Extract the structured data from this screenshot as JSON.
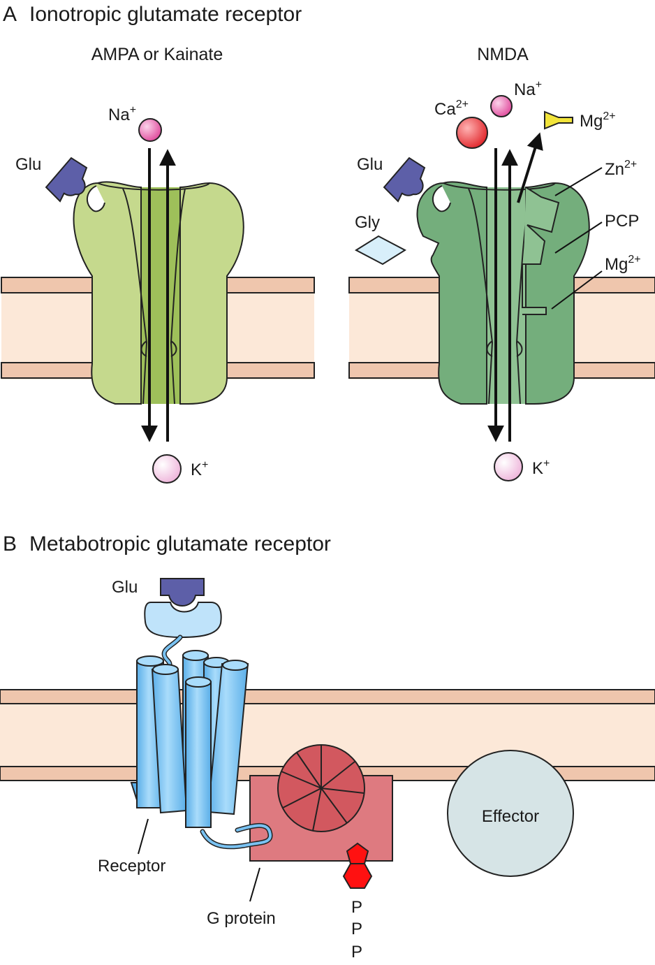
{
  "panel_a": {
    "letter": "A",
    "title": "Ionotropic glutamate receptor",
    "ampa": {
      "title": "AMPA or Kainate",
      "glu": "Glu",
      "na_base": "Na",
      "na_charge": "+",
      "k_base": "K",
      "k_charge": "+"
    },
    "nmda": {
      "title": "NMDA",
      "glu": "Glu",
      "gly": "Gly",
      "ca_base": "Ca",
      "ca_charge": "2+",
      "na_base": "Na",
      "na_charge": "+",
      "mg_top_base": "Mg",
      "mg_top_charge": "2+",
      "zn_base": "Zn",
      "zn_charge": "2+",
      "pcp": "PCP",
      "mg_site_base": "Mg",
      "mg_site_charge": "2+",
      "k_base": "K",
      "k_charge": "+"
    }
  },
  "panel_b": {
    "letter": "B",
    "title": "Metabotropic glutamate receptor",
    "glu": "Glu",
    "receptor": "Receptor",
    "g_protein": "G protein",
    "effector": "Effector",
    "phosphates": [
      "P",
      "P",
      "P"
    ]
  },
  "colors": {
    "membrane_fill": "#fce8d8",
    "membrane_band": "#efc6ad",
    "ampa_body": "#c5d98d",
    "ampa_pore": "#9ec05a",
    "nmda_body": "#74ae7c",
    "nmda_pore": "#8fc293",
    "glu_ligand": "#5d5fa8",
    "na_ion": "#e45aa6",
    "k_ion": "#f3c3e3",
    "ca_ion": "#e8383c",
    "mg_block": "#f2e43a",
    "gly_ligand": "#d8effa",
    "helix": "#79c2f2",
    "g_protein": "#de7a80",
    "g_protein_wheel": "#d2585f",
    "phosphate": "#ff1111",
    "effector": "#d6e4e6"
  }
}
